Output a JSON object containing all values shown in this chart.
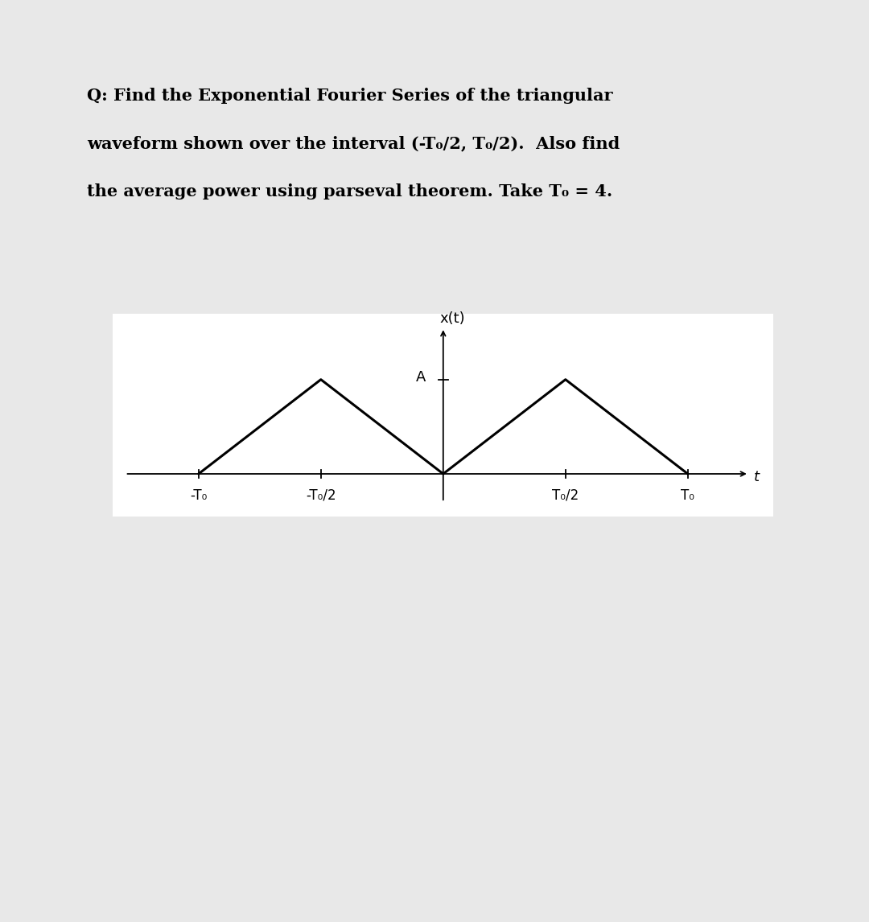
{
  "title_line1": "Q: Find the Exponential Fourier Series of the triangular",
  "title_line2": "waveform shown over the interval (-T₀/2, T₀/2).  Also find",
  "title_line3": "the average power using parseval theorem. Take T₀ = 4.",
  "bg_color": "#e8e8e8",
  "plot_bg": "#ffffff",
  "waveform_color": "#000000",
  "axis_color": "#000000",
  "T0": 4,
  "A": 1,
  "xlabel": "t",
  "ylabel": "x(t)",
  "A_label": "A",
  "x_tick_labels": [
    "-T₀",
    "-T₀/2",
    "T₀/2",
    "T₀"
  ],
  "x_tick_positions": [
    -4,
    -2,
    2,
    4
  ],
  "title_fontsize": 15,
  "tick_fontsize": 12,
  "label_fontsize": 13
}
